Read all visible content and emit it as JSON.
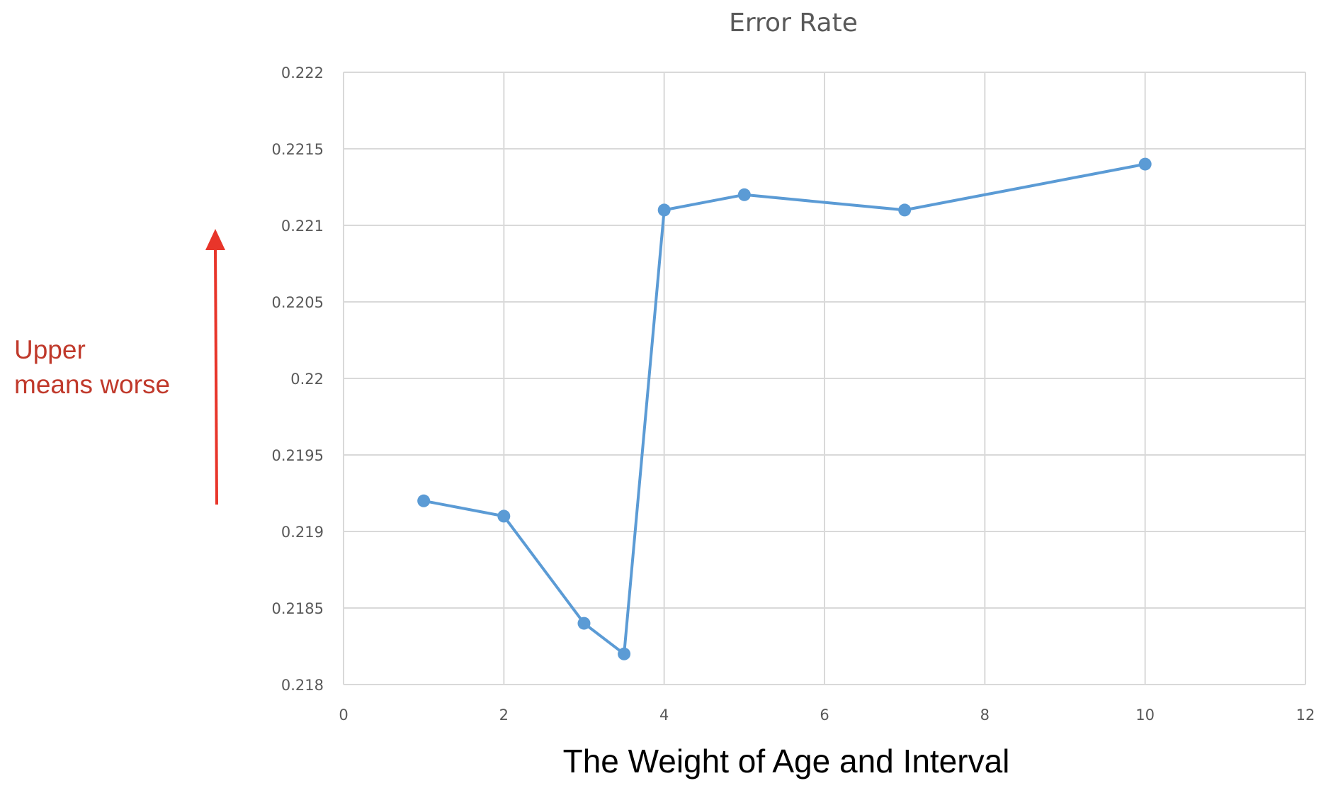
{
  "chart_data": {
    "type": "line",
    "title": "Error Rate",
    "xlabel": "The Weight of Age and Interval",
    "ylabel": "",
    "xlim": [
      0,
      12
    ],
    "ylim": [
      0.218,
      0.222
    ],
    "x_ticks": [
      0,
      2,
      4,
      6,
      8,
      10,
      12
    ],
    "y_ticks": [
      0.218,
      0.2185,
      0.219,
      0.2195,
      0.22,
      0.2205,
      0.221,
      0.2215,
      0.222
    ],
    "x_tick_labels": [
      "0",
      "2",
      "4",
      "6",
      "8",
      "10",
      "12"
    ],
    "y_tick_labels": [
      "0.218",
      "0.2185",
      "0.219",
      "0.2195",
      "0.22",
      "0.2205",
      "0.221",
      "0.2215",
      "0.222"
    ],
    "grid": true,
    "legend": "none",
    "series": [
      {
        "x": [
          1,
          2,
          3,
          3.5,
          4,
          5,
          7,
          10
        ],
        "values": [
          0.2192,
          0.2191,
          0.2184,
          0.2182,
          0.2211,
          0.2212,
          0.2211,
          0.2214
        ]
      }
    ],
    "colors": {
      "series": "#5b9bd5",
      "grid": "#d9d9d9",
      "annotation": "#c0392b",
      "arrow": "#e8352a"
    }
  },
  "annotation": {
    "line1": "Upper",
    "line2": "means worse"
  }
}
